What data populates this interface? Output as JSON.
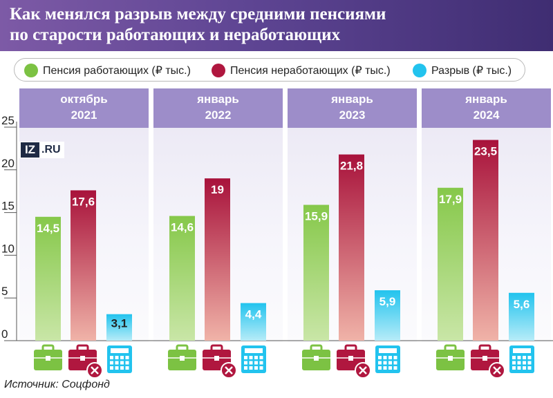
{
  "title": {
    "line1": "Как менялся разрыв между средними пенсиями",
    "line2": "по старости работающих и неработающих"
  },
  "legend": [
    {
      "label": "Пенсия работающих (₽ тыс.)",
      "color": "#7cc243"
    },
    {
      "label": "Пенсия неработающих (₽ тыс.)",
      "color": "#b0173f"
    },
    {
      "label": "Разрыв (₽ тыс.)",
      "color": "#22c3ee"
    }
  ],
  "panels": [
    {
      "line1": "октябрь",
      "line2": "2021"
    },
    {
      "line1": "январь",
      "line2": "2022"
    },
    {
      "line1": "январь",
      "line2": "2023"
    },
    {
      "line1": "январь",
      "line2": "2024"
    }
  ],
  "logo": {
    "part1": "IZ",
    "part2": ".RU"
  },
  "source": "Источник: Соцфонд",
  "chart_data": {
    "type": "bar",
    "categories": [
      "октябрь 2021",
      "январь 2022",
      "январь 2023",
      "январь 2024"
    ],
    "series": [
      {
        "name": "Пенсия работающих (₽ тыс.)",
        "values": [
          14.5,
          14.6,
          15.9,
          17.9
        ],
        "labels": [
          "14,5",
          "14,6",
          "15,9",
          "17,9"
        ],
        "color": "#7cc243"
      },
      {
        "name": "Пенсия неработающих (₽ тыс.)",
        "values": [
          17.6,
          19,
          21.8,
          23.5
        ],
        "labels": [
          "17,6",
          "19",
          "21,8",
          "23,5"
        ],
        "color": "#b0173f"
      },
      {
        "name": "Разрыв (₽ тыс.)",
        "values": [
          3.1,
          4.4,
          5.9,
          5.6
        ],
        "labels": [
          "3,1",
          "4,4",
          "5,9",
          "5,6"
        ],
        "color": "#22c3ee"
      }
    ],
    "ylim": [
      0,
      25
    ],
    "yticks": [
      0,
      5,
      10,
      15,
      20,
      25
    ],
    "legend_position": "top",
    "icons": [
      "briefcase-icon",
      "briefcase-crossed-icon",
      "calculator-icon"
    ]
  }
}
